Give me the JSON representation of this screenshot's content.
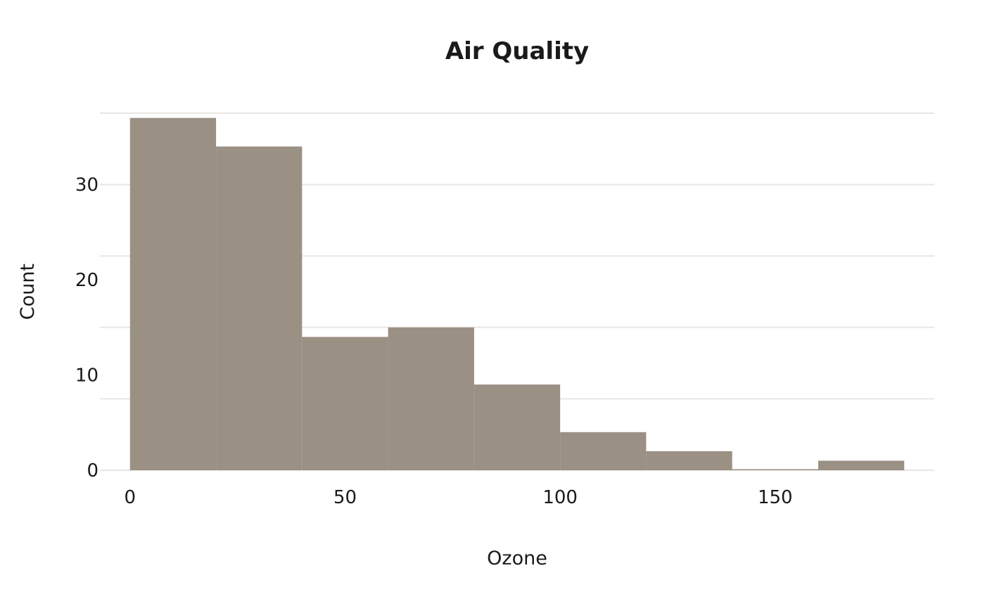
{
  "colors": {
    "bar": "#9b9084",
    "grid": "#e9e6e2",
    "text": "#1a1a1a",
    "background": "#ffffff"
  },
  "chart_data": {
    "type": "bar",
    "histogram": true,
    "title": "Air Quality",
    "xlabel": "Ozone",
    "ylabel": "Count",
    "bin_edges": [
      0,
      20,
      40,
      60,
      80,
      100,
      120,
      140,
      160,
      180
    ],
    "values": [
      37,
      34,
      14,
      15,
      9,
      4,
      2,
      0,
      1
    ],
    "xlim": [
      -7,
      187
    ],
    "ylim": [
      0,
      37.5
    ],
    "x_ticks": [
      0,
      50,
      100,
      150
    ],
    "y_ticks": [
      0,
      10,
      20,
      30
    ],
    "y_gridlines": [
      0,
      7.5,
      15,
      22.5,
      30,
      37.5
    ],
    "grid": true,
    "legend": "none"
  }
}
